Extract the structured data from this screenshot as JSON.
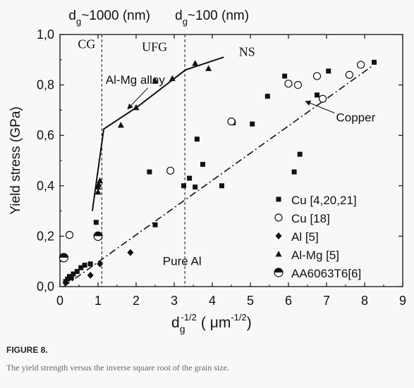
{
  "caption": {
    "figure_label": "FIGURE 8.",
    "text": "The yield strength versus the inverse square root of the grain size."
  },
  "chart_data": {
    "type": "scatter",
    "xlabel": {
      "main": "d",
      "sub": "g",
      "sup": "-1/2",
      "unit": "( μm",
      "unit_sup": "-1/2",
      "close": ")"
    },
    "ylabel": "Yield stress (GPa)",
    "xlim": [
      0,
      9
    ],
    "ylim": [
      0,
      1.0
    ],
    "x_ticks": [
      0,
      1,
      2,
      3,
      4,
      5,
      6,
      7,
      8,
      9
    ],
    "y_ticks": [
      0.0,
      0.2,
      0.4,
      0.6,
      0.8,
      1.0
    ],
    "y_tick_labels": [
      "0,0",
      "0,2",
      "0,4",
      "0,6",
      "0,8",
      "1,0"
    ],
    "legend_position": "lower-right",
    "series": [
      {
        "name": "Cu [4,20,21]",
        "marker": "square",
        "points": [
          [
            0.15,
            0.02
          ],
          [
            0.2,
            0.03
          ],
          [
            0.25,
            0.04
          ],
          [
            0.3,
            0.035
          ],
          [
            0.35,
            0.05
          ],
          [
            0.45,
            0.06
          ],
          [
            0.55,
            0.075
          ],
          [
            0.65,
            0.085
          ],
          [
            0.8,
            0.09
          ],
          [
            0.95,
            0.255
          ],
          [
            2.35,
            0.455
          ],
          [
            2.5,
            0.245
          ],
          [
            3.25,
            0.4
          ],
          [
            3.4,
            0.43
          ],
          [
            3.55,
            0.395
          ],
          [
            3.6,
            0.585
          ],
          [
            3.75,
            0.485
          ],
          [
            4.25,
            0.4
          ],
          [
            4.55,
            0.65
          ],
          [
            5.05,
            0.645
          ],
          [
            5.45,
            0.755
          ],
          [
            5.9,
            0.835
          ],
          [
            6.15,
            0.455
          ],
          [
            6.3,
            0.525
          ],
          [
            6.75,
            0.76
          ],
          [
            7.05,
            0.855
          ],
          [
            8.25,
            0.89
          ]
        ]
      },
      {
        "name": "Cu [18]",
        "marker": "circle-open",
        "points": [
          [
            0.25,
            0.205
          ],
          [
            2.9,
            0.46
          ],
          [
            4.5,
            0.655
          ],
          [
            6.0,
            0.805
          ],
          [
            6.25,
            0.8
          ],
          [
            6.75,
            0.835
          ],
          [
            6.9,
            0.745
          ],
          [
            7.6,
            0.84
          ],
          [
            7.9,
            0.88
          ]
        ]
      },
      {
        "name": "Al [5]",
        "marker": "diamond",
        "points": [
          [
            0.15,
            0.015
          ],
          [
            0.8,
            0.045
          ],
          [
            1.05,
            0.09
          ],
          [
            1.85,
            0.135
          ]
        ]
      },
      {
        "name": "Al-Mg [5]",
        "marker": "triangle",
        "points": [
          [
            1.0,
            0.375
          ],
          [
            1.0,
            0.395
          ],
          [
            1.02,
            0.405
          ],
          [
            1.05,
            0.42
          ],
          [
            1.6,
            0.64
          ],
          [
            2.0,
            0.71
          ],
          [
            2.5,
            0.815
          ],
          [
            2.95,
            0.825
          ],
          [
            3.55,
            0.885
          ],
          [
            3.9,
            0.865
          ]
        ]
      },
      {
        "name": "AA6063T6[6]",
        "marker": "circle-half",
        "points": [
          [
            0.1,
            0.115
          ],
          [
            1.0,
            0.2
          ]
        ]
      }
    ],
    "lines": [
      {
        "name": "Al-Mg alloy",
        "style": "solid",
        "points": [
          [
            0.85,
            0.3
          ],
          [
            1.15,
            0.625
          ],
          [
            2.05,
            0.715
          ],
          [
            3.3,
            0.86
          ],
          [
            4.3,
            0.91
          ]
        ]
      },
      {
        "name": "Copper",
        "style": "dash-dot",
        "points": [
          [
            0.1,
            0.0
          ],
          [
            8.2,
            0.875
          ]
        ]
      }
    ],
    "vlines": [
      {
        "x": 1.1,
        "label_main": "d",
        "label_sub": "g",
        "label_rest": "~1000 (nm)"
      },
      {
        "x": 3.28,
        "label_main": "d",
        "label_sub": "g",
        "label_rest": "~100 (nm)"
      }
    ],
    "annotations": [
      {
        "text": "CG",
        "x": 0.47,
        "y": 0.945,
        "font": "serif"
      },
      {
        "text": "UFG",
        "x": 2.15,
        "y": 0.935,
        "font": "serif"
      },
      {
        "text": "NS",
        "x": 4.7,
        "y": 0.915,
        "font": "serif"
      },
      {
        "text": "Al-Mg alloy",
        "x": 1.2,
        "y": 0.805,
        "font": "sans",
        "arrow_to": [
          1.78,
          0.705
        ]
      },
      {
        "text": "Copper",
        "x": 7.25,
        "y": 0.655,
        "font": "sans",
        "arrow_to": [
          6.45,
          0.735
        ]
      },
      {
        "text": "Pure Al",
        "x": 2.7,
        "y": 0.085,
        "font": "sans"
      }
    ]
  }
}
